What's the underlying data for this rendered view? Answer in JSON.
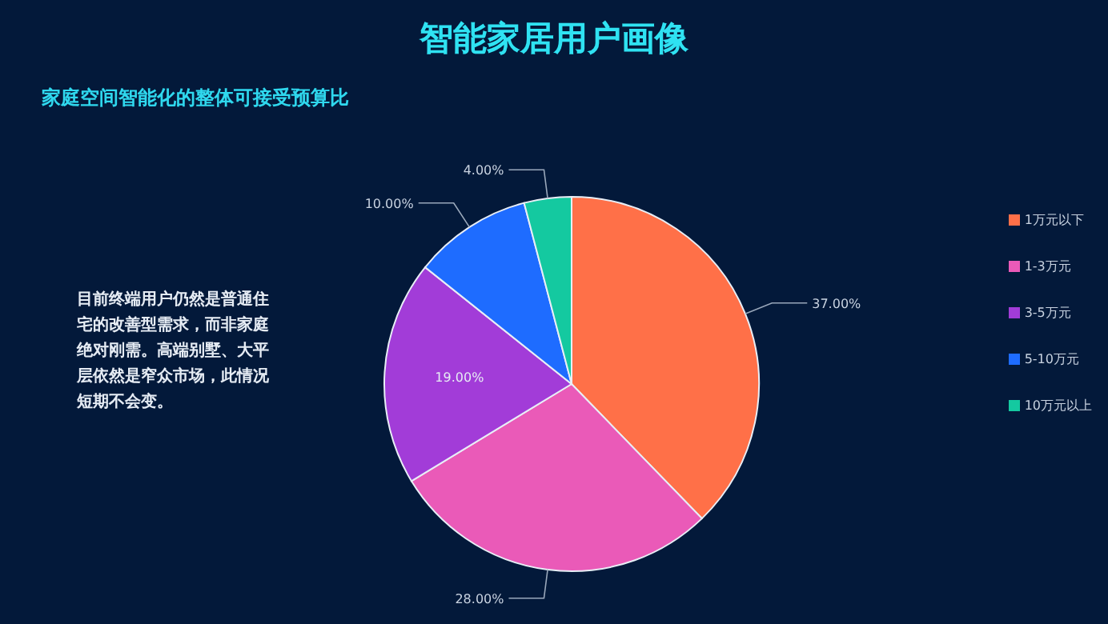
{
  "chart_data": {
    "type": "pie",
    "title": "智能家居用户画像",
    "subtitle": "家庭空间智能化的整体可接受预算比",
    "categories": [
      "1万元以下",
      "1-3万元",
      "3-5万元",
      "5-10万元",
      "10万元以上"
    ],
    "values": [
      37,
      28,
      19,
      10,
      4
    ],
    "value_labels": [
      "37.00%",
      "28.00%",
      "19.00%",
      "10.00%",
      "4.00%"
    ],
    "colors": [
      "#ff7048",
      "#ea5ab8",
      "#a23cd8",
      "#1e6cff",
      "#14c9a0"
    ],
    "annotations": [
      "目前终端用户仍然是普通住宅的改善型需求，而非家庭绝对刚需。高端别墅、大平层依然是窄众市场，此情况短期不会变。"
    ],
    "legend": "right"
  }
}
